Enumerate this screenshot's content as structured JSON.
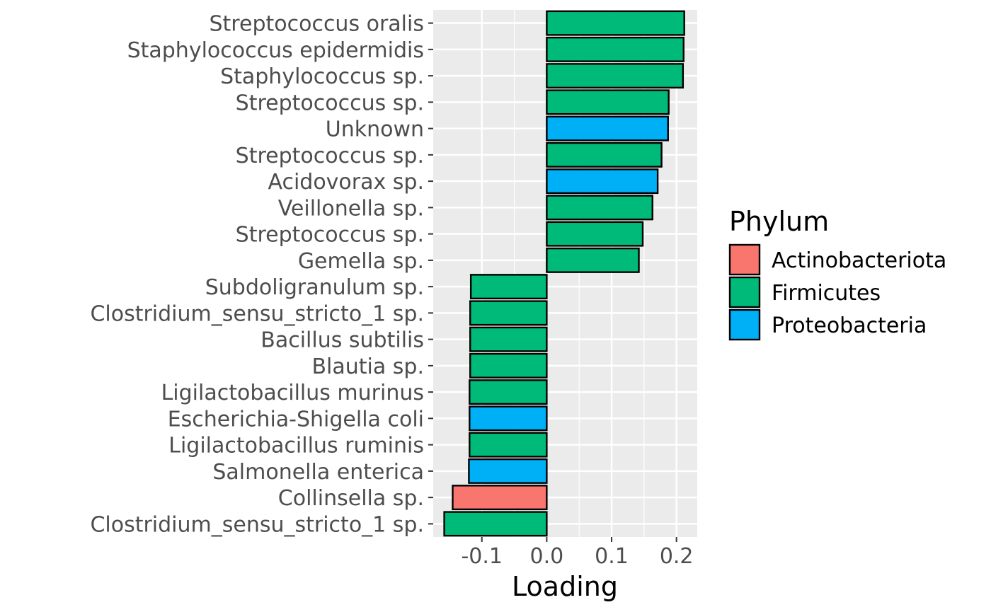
{
  "chart_data": {
    "type": "bar",
    "orientation": "horizontal",
    "xlabel": "Loading",
    "ylabel": "",
    "xlim": [
      -0.175,
      0.232
    ],
    "x_ticks": [
      {
        "value": -0.1,
        "label": "-0.1"
      },
      {
        "value": 0.0,
        "label": "0.0"
      },
      {
        "value": 0.1,
        "label": "0.1"
      },
      {
        "value": 0.2,
        "label": "0.2"
      }
    ],
    "grid": true,
    "legend": {
      "title": "Phylum",
      "placement": "right",
      "entries": [
        {
          "label": "Actinobacteriota",
          "color": "#F8766D"
        },
        {
          "label": "Firmicutes",
          "color": "#00BA7A"
        },
        {
          "label": "Proteobacteria",
          "color": "#00B0F6"
        }
      ]
    },
    "bars": [
      {
        "label": "Streptococcus oralis",
        "value": 0.212,
        "phylum": "Firmicutes"
      },
      {
        "label": "Staphylococcus epidermidis",
        "value": 0.211,
        "phylum": "Firmicutes"
      },
      {
        "label": "Staphylococcus sp.",
        "value": 0.21,
        "phylum": "Firmicutes"
      },
      {
        "label": "Streptococcus sp.",
        "value": 0.188,
        "phylum": "Firmicutes"
      },
      {
        "label": "Unknown",
        "value": 0.187,
        "phylum": "Proteobacteria"
      },
      {
        "label": "Streptococcus sp.",
        "value": 0.177,
        "phylum": "Firmicutes"
      },
      {
        "label": "Acidovorax sp.",
        "value": 0.171,
        "phylum": "Proteobacteria"
      },
      {
        "label": "Veillonella sp.",
        "value": 0.163,
        "phylum": "Firmicutes"
      },
      {
        "label": "Streptococcus sp.",
        "value": 0.148,
        "phylum": "Firmicutes"
      },
      {
        "label": "Gemella sp.",
        "value": 0.142,
        "phylum": "Firmicutes"
      },
      {
        "label": "Subdoligranulum sp.",
        "value": -0.117,
        "phylum": "Firmicutes"
      },
      {
        "label": "Clostridium_sensu_stricto_1 sp.",
        "value": -0.118,
        "phylum": "Firmicutes"
      },
      {
        "label": "Bacillus subtilis",
        "value": -0.118,
        "phylum": "Firmicutes"
      },
      {
        "label": "Blautia sp.",
        "value": -0.118,
        "phylum": "Firmicutes"
      },
      {
        "label": "Ligilactobacillus murinus",
        "value": -0.119,
        "phylum": "Firmicutes"
      },
      {
        "label": "Escherichia-Shigella coli",
        "value": -0.119,
        "phylum": "Proteobacteria"
      },
      {
        "label": "Ligilactobacillus ruminis",
        "value": -0.119,
        "phylum": "Firmicutes"
      },
      {
        "label": "Salmonella enterica",
        "value": -0.12,
        "phylum": "Proteobacteria"
      },
      {
        "label": "Collinsella sp.",
        "value": -0.145,
        "phylum": "Actinobacteriota"
      },
      {
        "label": "Clostridium_sensu_stricto_1 sp.",
        "value": -0.158,
        "phylum": "Firmicutes"
      }
    ]
  }
}
